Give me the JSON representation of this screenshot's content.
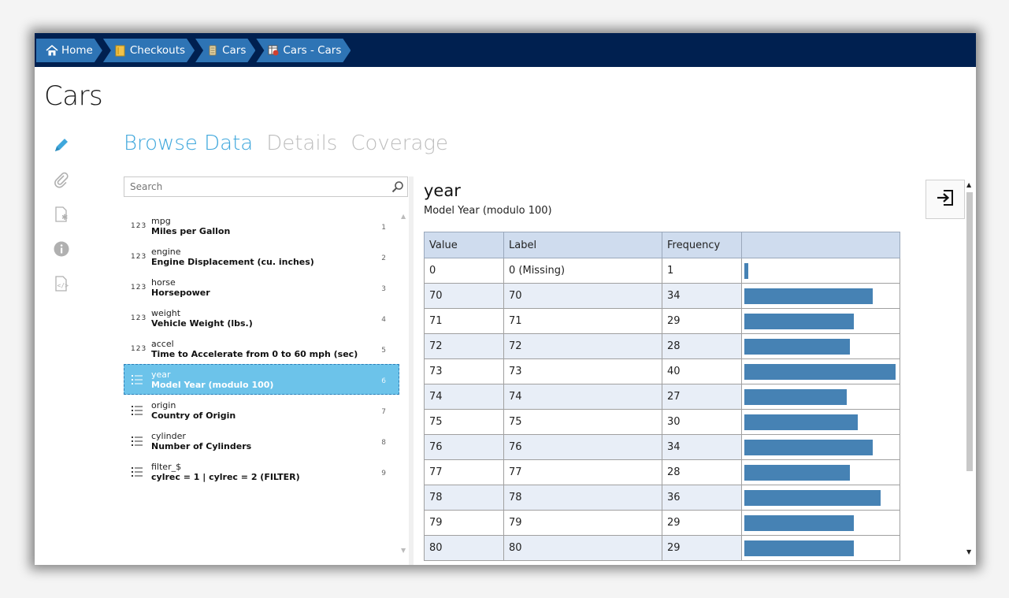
{
  "breadcrumb": [
    {
      "label": "Home",
      "icon": "home-icon"
    },
    {
      "label": "Checkouts",
      "icon": "folder-icon"
    },
    {
      "label": "Cars",
      "icon": "database-icon"
    },
    {
      "label": "Cars - Cars",
      "icon": "dataset-icon"
    }
  ],
  "page": {
    "title": "Cars"
  },
  "rail": [
    "pencil-icon",
    "paperclip-icon",
    "file-star-icon",
    "info-icon",
    "code-file-icon"
  ],
  "tabs": [
    "Browse Data",
    "Details",
    "Coverage"
  ],
  "active_tab": "Browse Data",
  "search": {
    "placeholder": "Search",
    "value": ""
  },
  "variables": [
    {
      "type": "123",
      "name": "mpg",
      "label": "Miles per Gallon",
      "num": "1"
    },
    {
      "type": "123",
      "name": "engine",
      "label": "Engine Displacement (cu. inches)",
      "num": "2"
    },
    {
      "type": "123",
      "name": "horse",
      "label": "Horsepower",
      "num": "3"
    },
    {
      "type": "123",
      "name": "weight",
      "label": "Vehicle Weight (lbs.)",
      "num": "4"
    },
    {
      "type": "123",
      "name": "accel",
      "label": "Time to Accelerate from 0 to 60 mph (sec)",
      "num": "5"
    },
    {
      "type": "list",
      "name": "year",
      "label": "Model Year (modulo 100)",
      "num": "6",
      "selected": true
    },
    {
      "type": "list",
      "name": "origin",
      "label": "Country of Origin",
      "num": "7"
    },
    {
      "type": "list",
      "name": "cylinder",
      "label": "Number of Cylinders",
      "num": "8"
    },
    {
      "type": "list",
      "name": "filter_$",
      "label": "cylrec = 1 | cylrec = 2 (FILTER)",
      "num": "9"
    }
  ],
  "detail": {
    "title": "year",
    "subtitle": "Model Year (modulo 100)",
    "columns": [
      "Value",
      "Label",
      "Frequency",
      ""
    ],
    "max_frequency": 40,
    "rows": [
      {
        "value": "0",
        "label": "0 (Missing)",
        "frequency": "1"
      },
      {
        "value": "70",
        "label": "70",
        "frequency": "34"
      },
      {
        "value": "71",
        "label": "71",
        "frequency": "29"
      },
      {
        "value": "72",
        "label": "72",
        "frequency": "28"
      },
      {
        "value": "73",
        "label": "73",
        "frequency": "40"
      },
      {
        "value": "74",
        "label": "74",
        "frequency": "27"
      },
      {
        "value": "75",
        "label": "75",
        "frequency": "30"
      },
      {
        "value": "76",
        "label": "76",
        "frequency": "34"
      },
      {
        "value": "77",
        "label": "77",
        "frequency": "28"
      },
      {
        "value": "78",
        "label": "78",
        "frequency": "36"
      },
      {
        "value": "79",
        "label": "79",
        "frequency": "29"
      },
      {
        "value": "80",
        "label": "80",
        "frequency": "29"
      }
    ]
  },
  "colors": {
    "navy": "#002050",
    "crumb": "#2e74b5",
    "accent": "#3fa7dc",
    "bar": "#4682b4",
    "selected": "#6cc3ea"
  }
}
